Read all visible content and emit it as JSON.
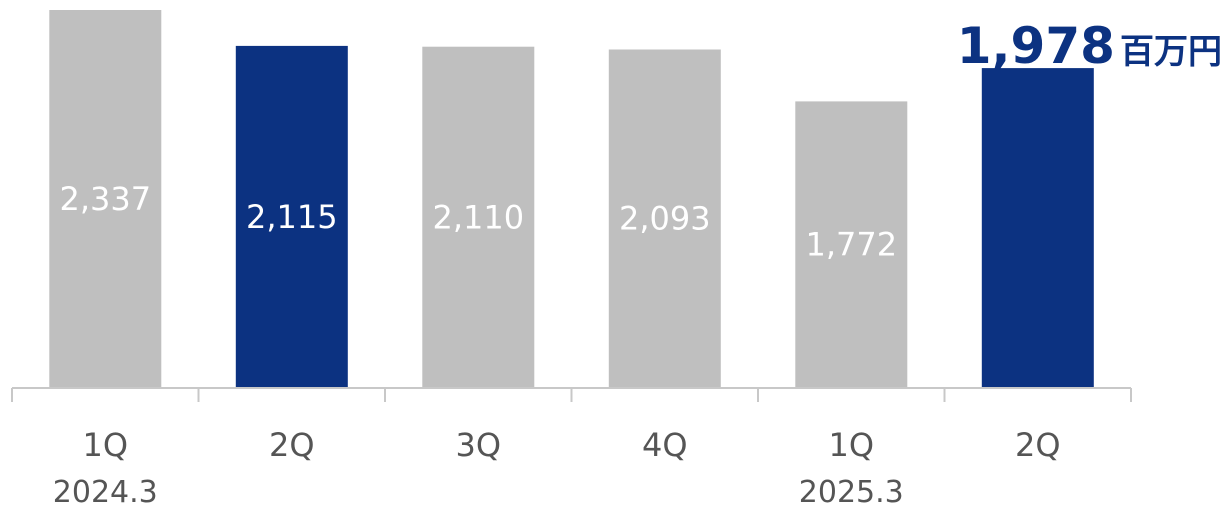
{
  "chart_data": {
    "type": "bar",
    "categories": [
      "1Q",
      "2Q",
      "3Q",
      "4Q",
      "1Q",
      "2Q"
    ],
    "period_labels": [
      "2024.3",
      "",
      "",
      "",
      "2025.3",
      ""
    ],
    "values": [
      2337,
      2115,
      2110,
      2093,
      1772,
      1978
    ],
    "value_labels": [
      "2,337",
      "2,115",
      "2,110",
      "2,093",
      "1,772",
      ""
    ],
    "highlight": [
      false,
      true,
      false,
      false,
      false,
      true
    ],
    "ylim": [
      0,
      2337
    ],
    "grid": false,
    "legend": "none",
    "callout": {
      "value": "1,978",
      "unit": "百万円"
    }
  },
  "colors": {
    "highlight": "#0c3281",
    "normal": "#bfbfbf",
    "axis": "#c8c8c8",
    "tick_text": "#555555",
    "bar_text": "#ffffff"
  }
}
